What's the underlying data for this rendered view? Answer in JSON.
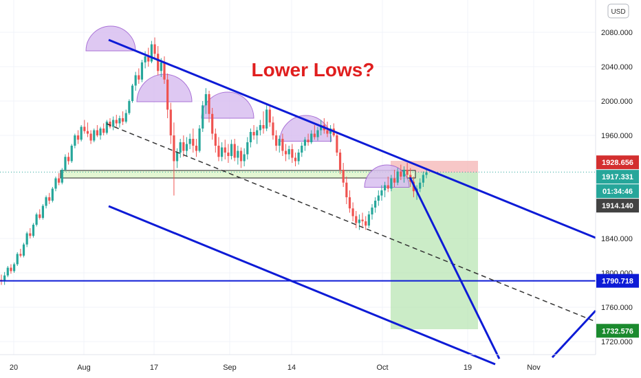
{
  "chart_data": {
    "type": "candlestick",
    "title": "Lower Lows?",
    "title_color": "#e01e1e",
    "currency": "USD",
    "y_range": [
      1700,
      2100
    ],
    "y_ticks": [
      {
        "value": 2080,
        "label": "2080.000"
      },
      {
        "value": 2040,
        "label": "2040.000"
      },
      {
        "value": 2000,
        "label": "2000.000"
      },
      {
        "value": 1960,
        "label": "1960.000"
      },
      {
        "value": 1840,
        "label": "1840.000"
      },
      {
        "value": 1800,
        "label": "1800.000"
      },
      {
        "value": 1760,
        "label": "1760.000"
      },
      {
        "value": 1720,
        "label": "1720.000"
      }
    ],
    "x_ticks": [
      {
        "pos": 20,
        "label": "20"
      },
      {
        "pos": 122,
        "label": "Aug"
      },
      {
        "pos": 224,
        "label": "17"
      },
      {
        "pos": 334,
        "label": "Sep"
      },
      {
        "pos": 424,
        "label": "14"
      },
      {
        "pos": 556,
        "label": "Oct"
      },
      {
        "pos": 680,
        "label": "19"
      },
      {
        "pos": 776,
        "label": "Nov"
      }
    ],
    "price_labels": [
      {
        "value": 1928.656,
        "label": "1928.656",
        "color": "#d32f2f"
      },
      {
        "value": 1917.331,
        "label": "1917.331",
        "color": "#26a69a"
      },
      {
        "value": 1908.0,
        "label": "01:34:46",
        "color": "#26a69a"
      },
      {
        "value": 1914.14,
        "label": "1914.140",
        "color": "#424242"
      },
      {
        "value": 1790.718,
        "label": "1790.718",
        "color": "#0d1bd6"
      },
      {
        "value": 1732.576,
        "label": "1732.576",
        "color": "#1b8a2e"
      }
    ],
    "current_price": 1917.331,
    "horizontal_support": 1790.718,
    "colors": {
      "up": "#26a69a",
      "down": "#ef5350",
      "trendline": "#0d1bd6",
      "midline": "#333333",
      "stop_zone": "#f4b4b4",
      "target_zone": "#b9e6b4",
      "arc": "#d9bff0",
      "support_box": "#e3f6d2"
    },
    "candles": [
      [
        1792,
        1798,
        1786,
        1790
      ],
      [
        1790,
        1801,
        1786,
        1797
      ],
      [
        1797,
        1808,
        1795,
        1806
      ],
      [
        1806,
        1810,
        1799,
        1802
      ],
      [
        1802,
        1812,
        1800,
        1810
      ],
      [
        1810,
        1824,
        1808,
        1822
      ],
      [
        1822,
        1828,
        1818,
        1820
      ],
      [
        1820,
        1835,
        1818,
        1833
      ],
      [
        1833,
        1848,
        1830,
        1846
      ],
      [
        1846,
        1852,
        1840,
        1843
      ],
      [
        1843,
        1858,
        1841,
        1856
      ],
      [
        1856,
        1870,
        1854,
        1868
      ],
      [
        1868,
        1874,
        1862,
        1864
      ],
      [
        1864,
        1880,
        1862,
        1878
      ],
      [
        1878,
        1890,
        1875,
        1888
      ],
      [
        1888,
        1893,
        1880,
        1884
      ],
      [
        1884,
        1900,
        1882,
        1898
      ],
      [
        1898,
        1912,
        1895,
        1910
      ],
      [
        1910,
        1916,
        1902,
        1905
      ],
      [
        1905,
        1922,
        1903,
        1920
      ],
      [
        1920,
        1938,
        1918,
        1935
      ],
      [
        1935,
        1940,
        1926,
        1930
      ],
      [
        1930,
        1950,
        1928,
        1948
      ],
      [
        1948,
        1962,
        1945,
        1960
      ],
      [
        1960,
        1966,
        1950,
        1955
      ],
      [
        1955,
        1972,
        1953,
        1970
      ],
      [
        1970,
        1978,
        1962,
        1965
      ],
      [
        1965,
        1975,
        1958,
        1962
      ],
      [
        1962,
        1966,
        1950,
        1954
      ],
      [
        1954,
        1968,
        1952,
        1966
      ],
      [
        1966,
        1972,
        1958,
        1960
      ],
      [
        1960,
        1970,
        1955,
        1968
      ],
      [
        1968,
        1974,
        1960,
        1963
      ],
      [
        1963,
        1978,
        1961,
        1976
      ],
      [
        1976,
        1980,
        1968,
        1970
      ],
      [
        1970,
        1982,
        1966,
        1978
      ],
      [
        1978,
        1984,
        1970,
        1974
      ],
      [
        1974,
        1983,
        1969,
        1980
      ],
      [
        1980,
        1988,
        1972,
        1976
      ],
      [
        1976,
        1990,
        1974,
        1986
      ],
      [
        1986,
        2002,
        1984,
        2000
      ],
      [
        2000,
        2020,
        1998,
        2018
      ],
      [
        2018,
        2034,
        2012,
        2030
      ],
      [
        2030,
        2038,
        2020,
        2025
      ],
      [
        2025,
        2048,
        2022,
        2045
      ],
      [
        2045,
        2058,
        2038,
        2052
      ],
      [
        2052,
        2062,
        2040,
        2046
      ],
      [
        2046,
        2070,
        2044,
        2066
      ],
      [
        2066,
        2074,
        2050,
        2055
      ],
      [
        2055,
        2064,
        2030,
        2035
      ],
      [
        2035,
        2050,
        2028,
        2045
      ],
      [
        2045,
        2052,
        2020,
        2025
      ],
      [
        2025,
        2032,
        1980,
        1990
      ],
      [
        1990,
        1998,
        1950,
        1960
      ],
      [
        1960,
        1975,
        1890,
        1930
      ],
      [
        1930,
        1945,
        1922,
        1940
      ],
      [
        1940,
        1956,
        1934,
        1952
      ],
      [
        1952,
        1960,
        1935,
        1942
      ],
      [
        1942,
        1958,
        1936,
        1950
      ],
      [
        1950,
        1962,
        1944,
        1956
      ],
      [
        1956,
        1968,
        1940,
        1948
      ],
      [
        1948,
        1956,
        1935,
        1942
      ],
      [
        1942,
        1972,
        1940,
        1968
      ],
      [
        1968,
        2000,
        1964,
        1995
      ],
      [
        1995,
        2015,
        1985,
        2008
      ],
      [
        2008,
        2012,
        1975,
        1985
      ],
      [
        1985,
        1992,
        1955,
        1962
      ],
      [
        1962,
        1968,
        1940,
        1948
      ],
      [
        1948,
        1958,
        1930,
        1935
      ],
      [
        1935,
        1952,
        1930,
        1946
      ],
      [
        1946,
        1955,
        1932,
        1940
      ],
      [
        1940,
        1950,
        1928,
        1936
      ],
      [
        1936,
        1955,
        1932,
        1950
      ],
      [
        1950,
        1956,
        1930,
        1934
      ],
      [
        1934,
        1948,
        1926,
        1942
      ],
      [
        1942,
        1946,
        1922,
        1930
      ],
      [
        1930,
        1945,
        1924,
        1938
      ],
      [
        1938,
        1958,
        1932,
        1952
      ],
      [
        1952,
        1968,
        1946,
        1964
      ],
      [
        1964,
        1972,
        1955,
        1960
      ],
      [
        1960,
        1970,
        1950,
        1966
      ],
      [
        1966,
        1978,
        1960,
        1972
      ],
      [
        1972,
        1988,
        1962,
        1968
      ],
      [
        1968,
        1995,
        1965,
        1990
      ],
      [
        1990,
        1996,
        1970,
        1975
      ],
      [
        1975,
        1982,
        1955,
        1960
      ],
      [
        1960,
        1966,
        1942,
        1948
      ],
      [
        1948,
        1960,
        1940,
        1956
      ],
      [
        1956,
        1962,
        1936,
        1942
      ],
      [
        1942,
        1950,
        1930,
        1938
      ],
      [
        1938,
        1948,
        1932,
        1944
      ],
      [
        1944,
        1950,
        1928,
        1934
      ],
      [
        1934,
        1940,
        1924,
        1930
      ],
      [
        1930,
        1944,
        1926,
        1940
      ],
      [
        1940,
        1952,
        1935,
        1948
      ],
      [
        1948,
        1958,
        1942,
        1955
      ],
      [
        1955,
        1962,
        1948,
        1952
      ],
      [
        1952,
        1966,
        1950,
        1962
      ],
      [
        1962,
        1972,
        1955,
        1958
      ],
      [
        1958,
        1970,
        1954,
        1966
      ],
      [
        1966,
        1978,
        1960,
        1972
      ],
      [
        1972,
        1980,
        1962,
        1966
      ],
      [
        1966,
        1976,
        1958,
        1962
      ],
      [
        1962,
        1972,
        1952,
        1968
      ],
      [
        1968,
        1974,
        1958,
        1960
      ],
      [
        1960,
        1964,
        1936,
        1940
      ],
      [
        1940,
        1944,
        1915,
        1920
      ],
      [
        1920,
        1928,
        1900,
        1905
      ],
      [
        1905,
        1912,
        1880,
        1888
      ],
      [
        1888,
        1896,
        1870,
        1875
      ],
      [
        1875,
        1882,
        1860,
        1866
      ],
      [
        1866,
        1872,
        1852,
        1858
      ],
      [
        1858,
        1868,
        1850,
        1862
      ],
      [
        1862,
        1870,
        1854,
        1860
      ],
      [
        1860,
        1866,
        1850,
        1855
      ],
      [
        1855,
        1872,
        1852,
        1868
      ],
      [
        1868,
        1880,
        1862,
        1876
      ],
      [
        1876,
        1888,
        1870,
        1884
      ],
      [
        1884,
        1896,
        1878,
        1890
      ],
      [
        1890,
        1902,
        1884,
        1896
      ],
      [
        1896,
        1906,
        1888,
        1902
      ],
      [
        1902,
        1912,
        1894,
        1898
      ],
      [
        1898,
        1914,
        1895,
        1910
      ],
      [
        1910,
        1920,
        1900,
        1905
      ],
      [
        1905,
        1922,
        1902,
        1918
      ],
      [
        1918,
        1926,
        1908,
        1912
      ],
      [
        1912,
        1924,
        1905,
        1920
      ],
      [
        1920,
        1928,
        1910,
        1914
      ],
      [
        1914,
        1922,
        1900,
        1906
      ],
      [
        1906,
        1912,
        1888,
        1895
      ],
      [
        1895,
        1902,
        1885,
        1898
      ],
      [
        1898,
        1910,
        1894,
        1905
      ],
      [
        1905,
        1918,
        1900,
        1914
      ],
      [
        1914,
        1922,
        1910,
        1917
      ]
    ]
  }
}
